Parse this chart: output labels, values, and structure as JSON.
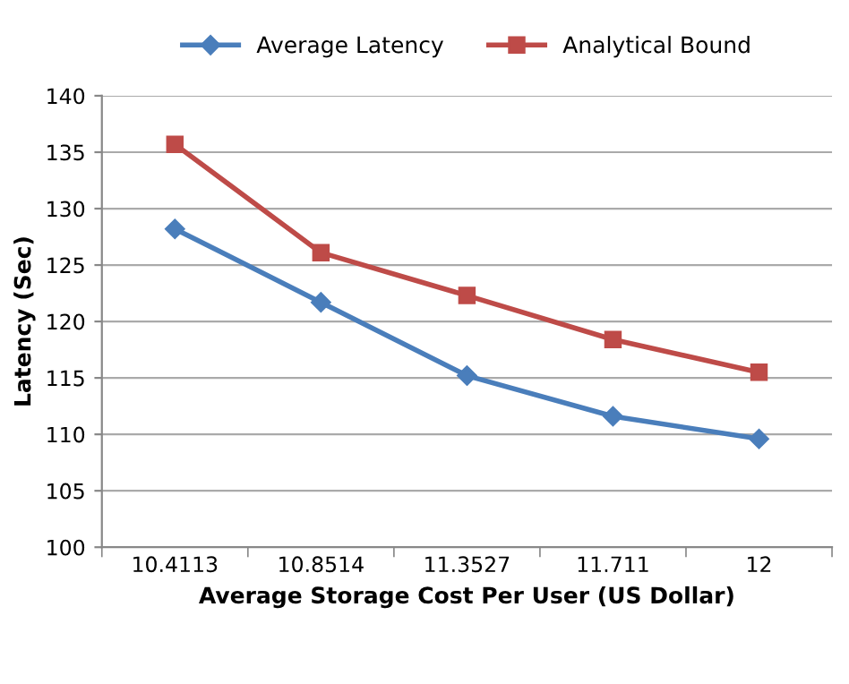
{
  "chart_data": {
    "type": "line",
    "xlabel": "Average Storage Cost Per User (US Dollar)",
    "ylabel": "Latency (Sec)",
    "categories": [
      "10.4113",
      "10.8514",
      "11.3527",
      "11.711",
      "12"
    ],
    "series": [
      {
        "name": "Average Latency",
        "color": "#4a7ebb",
        "marker": "diamond",
        "values": [
          128.2,
          121.7,
          115.2,
          111.6,
          109.6
        ]
      },
      {
        "name": "Analytical Bound",
        "color": "#be4b48",
        "marker": "square",
        "values": [
          135.7,
          126.1,
          122.3,
          118.4,
          115.5
        ]
      }
    ],
    "ylim": [
      100,
      140
    ],
    "yticks": [
      100,
      105,
      110,
      115,
      120,
      125,
      130,
      135,
      140
    ],
    "grid": "y",
    "legend": "top",
    "line_style": "solid"
  }
}
